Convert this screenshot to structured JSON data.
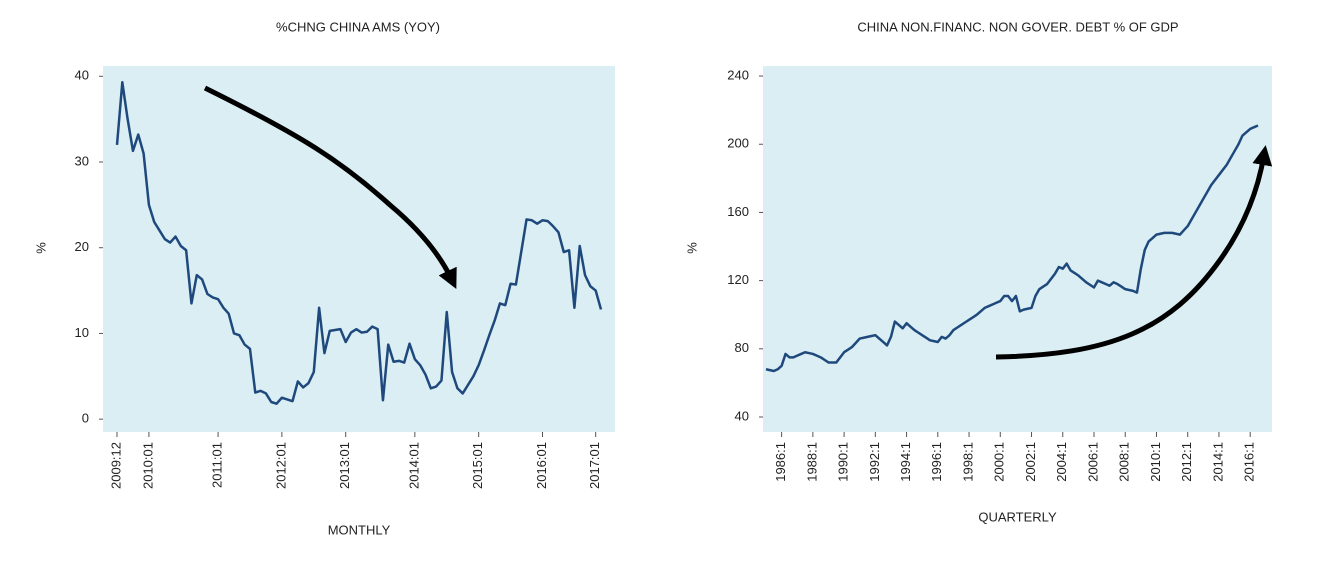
{
  "chart_data": [
    {
      "type": "line",
      "title": "%CHNG CHINA AMS (YOY)",
      "x_label": "MONTHLY",
      "y_label": "%",
      "categories": [
        "2009:12",
        null,
        null,
        null,
        null,
        null,
        "2010:01",
        null,
        null,
        null,
        null,
        null,
        null,
        null,
        null,
        null,
        null,
        null,
        null,
        "2011:01",
        null,
        null,
        null,
        null,
        null,
        null,
        null,
        null,
        null,
        null,
        null,
        "2012:01",
        null,
        null,
        null,
        null,
        null,
        null,
        null,
        null,
        null,
        null,
        null,
        "2013:01",
        null,
        null,
        null,
        null,
        null,
        null,
        null,
        null,
        null,
        null,
        null,
        null,
        "2014:01",
        null,
        null,
        null,
        null,
        null,
        null,
        null,
        null,
        null,
        null,
        null,
        "2015:01",
        null,
        null,
        null,
        null,
        null,
        null,
        null,
        null,
        null,
        null,
        null,
        "2016:01",
        null,
        null,
        null,
        null,
        null,
        null,
        null,
        null,
        null,
        "2017:01",
        null
      ],
      "series": [
        {
          "name": "%CHNG CHINA AMS",
          "color": "#1f497d",
          "values": [
            32,
            39.3,
            35,
            31.3,
            33.2,
            31,
            25,
            23,
            22,
            21,
            20.6,
            21.3,
            20.2,
            19.7,
            13.5,
            16.8,
            16.3,
            14.6,
            14.2,
            14.0,
            13,
            12.3,
            10,
            9.8,
            8.7,
            8.2,
            3.1,
            3.3,
            3.0,
            2.0,
            1.8,
            2.5,
            2.3,
            2.1,
            4.4,
            3.7,
            4.2,
            5.5,
            13,
            7.7,
            10.3,
            10.4,
            10.5,
            9,
            10.1,
            10.5,
            10.1,
            10.2,
            10.8,
            10.5,
            2.2,
            8.7,
            6.7,
            6.8,
            6.6,
            8.8,
            7,
            6.3,
            5.2,
            3.6,
            3.8,
            4.5,
            12.5,
            5.5,
            3.6,
            3.0,
            4,
            5,
            6.3,
            8,
            9.8,
            11.5,
            13.5,
            13.3,
            15.8,
            15.7,
            19.5,
            23.3,
            23.2,
            22.8,
            23.2,
            23.1,
            22.5,
            21.8,
            19.5,
            19.7,
            13,
            20.2,
            16.8,
            15.5,
            15,
            12.8
          ]
        }
      ],
      "ylim": [
        -1.5,
        41.2
      ],
      "yticks": [
        0,
        10,
        20,
        30,
        40
      ],
      "grid": false
    },
    {
      "type": "line",
      "title": "CHINA NON.FINANC. NON GOVER. DEBT % OF GDP",
      "x_label": "QUARTERLY",
      "y_label": "%",
      "categories": [
        null,
        null,
        null,
        null,
        "1986:1",
        null,
        null,
        null,
        null,
        null,
        null,
        null,
        "1988:1",
        null,
        null,
        null,
        null,
        null,
        null,
        null,
        "1990:1",
        null,
        null,
        null,
        null,
        null,
        null,
        null,
        "1992:1",
        null,
        null,
        null,
        null,
        null,
        null,
        null,
        "1994:1",
        null,
        null,
        null,
        null,
        null,
        null,
        null,
        "1996:1",
        null,
        null,
        null,
        null,
        null,
        null,
        null,
        "1998:1",
        null,
        null,
        null,
        null,
        null,
        null,
        null,
        "2000:1",
        null,
        null,
        null,
        null,
        null,
        null,
        null,
        "2002:1",
        null,
        null,
        null,
        null,
        null,
        null,
        null,
        "2004:1",
        null,
        null,
        null,
        null,
        null,
        null,
        null,
        "2006:1",
        null,
        null,
        null,
        null,
        null,
        null,
        null,
        "2008:1",
        null,
        null,
        null,
        null,
        null,
        null,
        null,
        "2010:1",
        null,
        null,
        null,
        null,
        null,
        null,
        null,
        "2012:1",
        null,
        null,
        null,
        null,
        null,
        null,
        null,
        "2014:1",
        null,
        null,
        null,
        null,
        null,
        null,
        null,
        "2016:1",
        null,
        null
      ],
      "series": [
        {
          "name": "CHINA NON.FINANC. NON GOVER. DEBT % OF GDP",
          "color": "#1f497d",
          "values": [
            68,
            67.5,
            67,
            68,
            70,
            77,
            75,
            75,
            76,
            77,
            78,
            77.5,
            77,
            76,
            75,
            73.5,
            72,
            72,
            72,
            75,
            78,
            79.5,
            81,
            83.5,
            86,
            86.5,
            87,
            87.5,
            88,
            86,
            84,
            82,
            87,
            96,
            94,
            92,
            95,
            93,
            91,
            89.5,
            88,
            86.5,
            85,
            84.5,
            84,
            87,
            86,
            88,
            91,
            92.5,
            94,
            95.5,
            97,
            98.5,
            100,
            102,
            104,
            105,
            106,
            107,
            108,
            111,
            111,
            108,
            111,
            102,
            103,
            103.5,
            104,
            111,
            115,
            116.5,
            118,
            121,
            124,
            128,
            127,
            130,
            126,
            124.5,
            123,
            121,
            119,
            117.5,
            116,
            120,
            119,
            118,
            117,
            119,
            118,
            116.5,
            115,
            114.5,
            114,
            113,
            127,
            138,
            143,
            145,
            147,
            147.5,
            148,
            148,
            148,
            147.5,
            147,
            149.5,
            152,
            156,
            160,
            164,
            168,
            172,
            176,
            179,
            182,
            185,
            188,
            192,
            196,
            200,
            205,
            207,
            209,
            210,
            211
          ]
        }
      ],
      "ylim": [
        31.2,
        245.9
      ],
      "yticks": [
        40,
        80,
        120,
        160,
        200,
        240
      ],
      "grid": false
    }
  ]
}
